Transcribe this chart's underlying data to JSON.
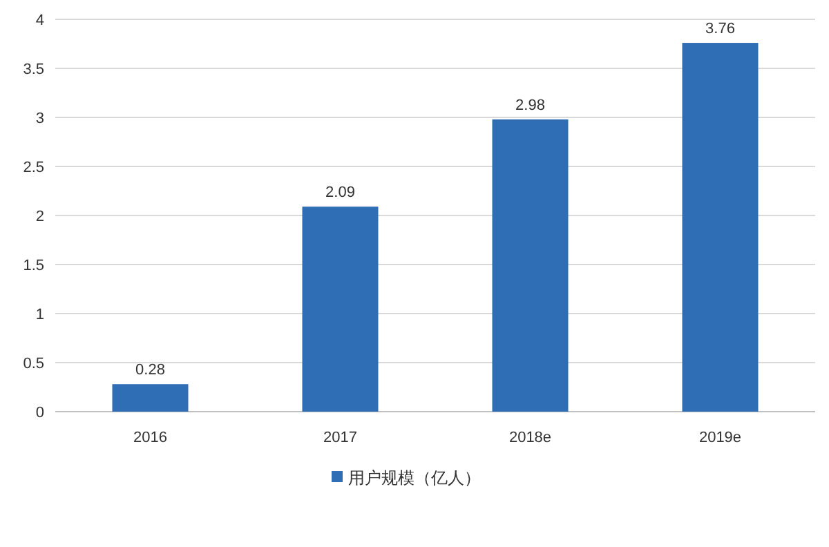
{
  "chart_data": {
    "type": "bar",
    "categories": [
      "2016",
      "2017",
      "2018e",
      "2019e"
    ],
    "series": [
      {
        "name": "用户规模（亿人）",
        "color": "#2f6db5",
        "values": [
          0.28,
          2.09,
          2.98,
          3.76
        ]
      }
    ],
    "ylim": [
      0,
      4
    ],
    "yticks": [
      0,
      0.5,
      1,
      1.5,
      2,
      2.5,
      3,
      3.5,
      4
    ],
    "grid": "y",
    "legend": "bottom",
    "data_labels": true
  }
}
